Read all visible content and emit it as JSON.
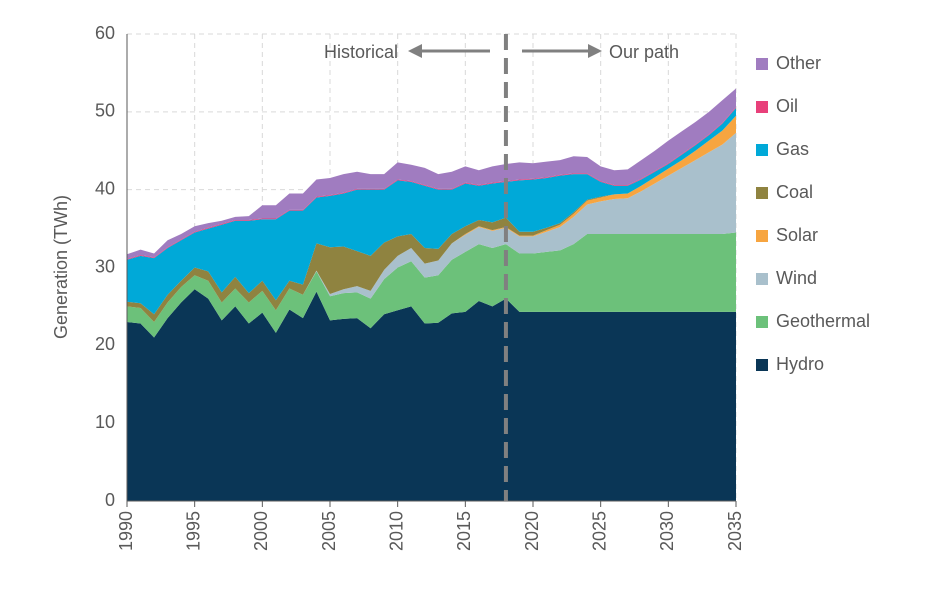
{
  "chart_data": {
    "type": "stacked_area",
    "y_label": "Generation (TWh)",
    "annotations": {
      "left": "Historical",
      "right": "Our path"
    },
    "divider_x": 2018,
    "x": [
      1990,
      1991,
      1992,
      1993,
      1994,
      1995,
      1996,
      1997,
      1998,
      1999,
      2000,
      2001,
      2002,
      2003,
      2004,
      2005,
      2006,
      2007,
      2008,
      2009,
      2010,
      2011,
      2012,
      2013,
      2014,
      2015,
      2016,
      2017,
      2018,
      2019,
      2020,
      2021,
      2022,
      2023,
      2024,
      2025,
      2026,
      2027,
      2028,
      2029,
      2030,
      2031,
      2032,
      2033,
      2034,
      2035
    ],
    "xlim": [
      1990,
      2035
    ],
    "xticks": [
      1990,
      1995,
      2000,
      2005,
      2010,
      2015,
      2020,
      2025,
      2030,
      2035
    ],
    "ylim": [
      0,
      60
    ],
    "yticks": [
      0,
      10,
      20,
      30,
      40,
      50,
      60
    ],
    "grid": true,
    "series": [
      {
        "name": "Hydro",
        "color": "#0a3656",
        "values": [
          23,
          22.8,
          21,
          23.5,
          25.5,
          27.2,
          26,
          23.2,
          25,
          22.8,
          24.2,
          21.6,
          24.6,
          23.5,
          26.9,
          23.2,
          23.4,
          23.5,
          22.2,
          24,
          24.5,
          25,
          22.8,
          22.9,
          24.1,
          24.3,
          25.7,
          25,
          26,
          24.3,
          24.3,
          24.3,
          24.3,
          24.3,
          24.3,
          24.3,
          24.3,
          24.3,
          24.3,
          24.3,
          24.3,
          24.3,
          24.3,
          24.3,
          24.3,
          24.3
        ]
      },
      {
        "name": "Geothermal",
        "color": "#6cc17a",
        "values": [
          2,
          2,
          2,
          2,
          2,
          1.8,
          2.3,
          2.3,
          2.3,
          2.7,
          2.8,
          2.9,
          2.7,
          3,
          2.6,
          3.1,
          3.3,
          3.3,
          3.8,
          4.5,
          5.5,
          5.8,
          5.9,
          6.1,
          6.9,
          7.7,
          7.3,
          7.5,
          7,
          7.5,
          7.5,
          7.7,
          7.9,
          8.7,
          10,
          10,
          10,
          10,
          10,
          10,
          10,
          10,
          10,
          10,
          10,
          10.2
        ]
      },
      {
        "name": "Wind",
        "color": "#a9c0cc",
        "values": [
          0,
          0,
          0,
          0,
          0,
          0,
          0,
          0,
          0,
          0,
          0,
          0,
          0,
          0,
          0.1,
          0.3,
          0.5,
          0.8,
          1,
          1.2,
          1.5,
          1.7,
          1.8,
          1.9,
          2.1,
          2.2,
          2.2,
          2.2,
          2.1,
          2.2,
          2.2,
          2.6,
          3,
          3.5,
          3.8,
          4.2,
          4.5,
          4.6,
          5.5,
          6.5,
          7.5,
          8.5,
          9.5,
          10.5,
          11.5,
          12.8
        ]
      },
      {
        "name": "Solar",
        "color": "#f7a540",
        "values": [
          0,
          0,
          0,
          0,
          0,
          0,
          0,
          0,
          0,
          0,
          0,
          0,
          0,
          0,
          0,
          0,
          0,
          0,
          0,
          0,
          0,
          0,
          0,
          0,
          0,
          0.1,
          0.1,
          0.1,
          0.1,
          0.1,
          0.1,
          0.2,
          0.3,
          0.4,
          0.5,
          0.5,
          0.6,
          0.6,
          0.7,
          0.8,
          0.9,
          1,
          1.2,
          1.5,
          1.8,
          2.2
        ]
      },
      {
        "name": "Coal",
        "color": "#8f8340",
        "values": [
          0.6,
          0.6,
          1,
          1,
          0.8,
          1,
          1.2,
          1.3,
          1.5,
          1.2,
          1.3,
          1.3,
          1,
          1.3,
          3.5,
          6,
          5.5,
          4.5,
          4.5,
          3.5,
          2.5,
          1.8,
          2,
          1.5,
          1.2,
          1,
          0.8,
          1,
          1.2,
          0.5,
          0.5,
          0.3,
          0.2,
          0.2,
          0.1,
          0.1,
          0,
          0,
          0,
          0,
          0,
          0,
          0,
          0,
          0,
          0
        ]
      },
      {
        "name": "Gas",
        "color": "#00a9d8",
        "values": [
          5.4,
          6.1,
          7.2,
          6,
          5.2,
          4.5,
          5.5,
          8.7,
          7.2,
          9.3,
          7.9,
          10.4,
          9,
          9.5,
          5.9,
          6.6,
          6.8,
          7.9,
          8.5,
          6.8,
          7.2,
          6.7,
          8,
          7.6,
          5.7,
          5.5,
          4.4,
          5,
          4.6,
          6.6,
          6.7,
          6.4,
          6.1,
          4.9,
          3.3,
          1.9,
          1.1,
          1,
          0.8,
          0.7,
          0.6,
          0.7,
          0.7,
          0.7,
          0.9,
          1
        ]
      },
      {
        "name": "Oil",
        "color": "#e8407a",
        "values": [
          0.1,
          0.1,
          0.1,
          0.1,
          0.1,
          0.1,
          0.1,
          0.1,
          0.1,
          0.1,
          0.1,
          0.1,
          0.1,
          0.1,
          0.1,
          0.1,
          0.1,
          0.1,
          0.1,
          0.1,
          0.1,
          0.1,
          0.1,
          0.1,
          0.1,
          0.1,
          0.1,
          0.1,
          0.1,
          0.1,
          0.1,
          0.1,
          0.1,
          0.1,
          0.1,
          0.1,
          0.1,
          0.1,
          0.1,
          0.1,
          0.1,
          0.1,
          0.1,
          0.1,
          0.1,
          0.1
        ]
      },
      {
        "name": "Other",
        "color": "#a07cc0",
        "values": [
          0.6,
          0.7,
          0.5,
          0.9,
          0.7,
          0.7,
          0.6,
          0.4,
          0.4,
          0.5,
          1.7,
          1.7,
          2.1,
          2.1,
          2.2,
          2.2,
          2.4,
          2.2,
          1.9,
          1.9,
          2.2,
          2.1,
          2.2,
          1.9,
          2.2,
          2.1,
          1.9,
          2.1,
          2.2,
          2.2,
          2,
          2,
          1.9,
          2.2,
          2.1,
          1.9,
          1.9,
          2,
          2.4,
          2.6,
          2.9,
          2.9,
          2.9,
          2.9,
          2.9,
          2.4
        ]
      }
    ]
  }
}
